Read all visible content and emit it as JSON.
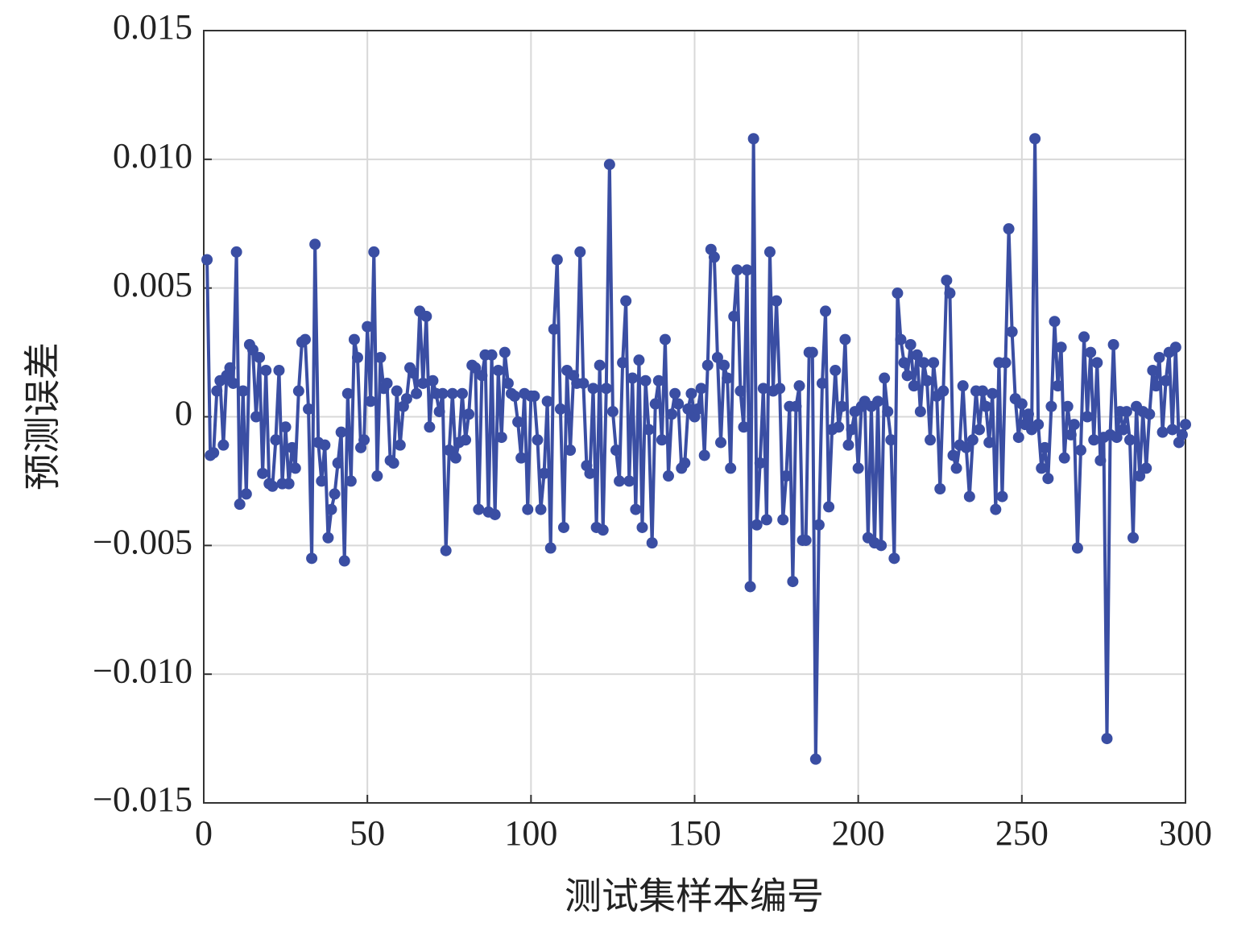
{
  "chart_data": {
    "type": "line",
    "xlabel": "测试集样本编号",
    "ylabel": "预测误差",
    "xlim": [
      0,
      300
    ],
    "xticks": [
      0,
      50,
      100,
      150,
      200,
      250,
      300
    ],
    "ylim": [
      -0.015,
      0.015
    ],
    "yticks": [
      {
        "value": -0.015,
        "label": "−0.015"
      },
      {
        "value": -0.01,
        "label": "−0.010"
      },
      {
        "value": -0.005,
        "label": "−0.005"
      },
      0,
      0.005,
      {
        "value": 0.01,
        "label": "0.010"
      },
      0.015
    ],
    "grid": true,
    "x": [
      1,
      2,
      3,
      4,
      5,
      6,
      7,
      8,
      9,
      10,
      11,
      12,
      13,
      14,
      15,
      16,
      17,
      18,
      19,
      20,
      21,
      22,
      23,
      24,
      25,
      26,
      27,
      28,
      29,
      30,
      31,
      32,
      33,
      34,
      35,
      36,
      37,
      38,
      39,
      40,
      41,
      42,
      43,
      44,
      45,
      46,
      47,
      48,
      49,
      50,
      51,
      52,
      53,
      54,
      55,
      56,
      57,
      58,
      59,
      60,
      61,
      62,
      63,
      64,
      65,
      66,
      67,
      68,
      69,
      70,
      71,
      72,
      73,
      74,
      75,
      76,
      77,
      78,
      79,
      80,
      81,
      82,
      83,
      84,
      85,
      86,
      87,
      88,
      89,
      90,
      91,
      92,
      93,
      94,
      95,
      96,
      97,
      98,
      99,
      100,
      101,
      102,
      103,
      104,
      105,
      106,
      107,
      108,
      109,
      110,
      111,
      112,
      113,
      114,
      115,
      116,
      117,
      118,
      119,
      120,
      121,
      122,
      123,
      124,
      125,
      126,
      127,
      128,
      129,
      130,
      131,
      132,
      133,
      134,
      135,
      136,
      137,
      138,
      139,
      140,
      141,
      142,
      143,
      144,
      145,
      146,
      147,
      148,
      149,
      150,
      151,
      152,
      153,
      154,
      155,
      156,
      157,
      158,
      159,
      160,
      161,
      162,
      163,
      164,
      165,
      166,
      167,
      168,
      169,
      170,
      171,
      172,
      173,
      174,
      175,
      176,
      177,
      178,
      179,
      180,
      181,
      182,
      183,
      184,
      185,
      186,
      187,
      188,
      189,
      190,
      191,
      192,
      193,
      194,
      195,
      196,
      197,
      198,
      199,
      200,
      201,
      202,
      203,
      204,
      205,
      206,
      207,
      208,
      209,
      210,
      211,
      212,
      213,
      214,
      215,
      216,
      217,
      218,
      219,
      220,
      221,
      222,
      223,
      224,
      225,
      226,
      227,
      228,
      229,
      230,
      231,
      232,
      233,
      234,
      235,
      236,
      237,
      238,
      239,
      240,
      241,
      242,
      243,
      244,
      245,
      246,
      247,
      248,
      249,
      250,
      251,
      252,
      253,
      254,
      255,
      256,
      257,
      258,
      259,
      260,
      261,
      262,
      263,
      264,
      265,
      266,
      267,
      268,
      269,
      270,
      271,
      272,
      273,
      274,
      275,
      276,
      277,
      278,
      279,
      280,
      281,
      282,
      283,
      284,
      285,
      286,
      287,
      288,
      289,
      290,
      291,
      292,
      293,
      294,
      295,
      296,
      297,
      298,
      299,
      300
    ],
    "series": [
      {
        "color": "#3a4ea3",
        "values": [
          0.0061,
          -0.0015,
          -0.0014,
          0.001,
          0.0014,
          -0.0011,
          0.0016,
          0.0019,
          0.0013,
          0.0064,
          -0.0034,
          0.001,
          -0.003,
          0.0028,
          0.0026,
          0.0,
          0.0023,
          -0.0022,
          0.0018,
          -0.0026,
          -0.0027,
          -0.0009,
          0.0018,
          -0.0026,
          -0.0004,
          -0.0026,
          -0.0012,
          -0.002,
          0.001,
          0.0029,
          0.003,
          0.0003,
          -0.0055,
          0.0067,
          -0.001,
          -0.0025,
          -0.0011,
          -0.0047,
          -0.0036,
          -0.003,
          -0.0018,
          -0.0006,
          -0.0056,
          0.0009,
          -0.0025,
          0.003,
          0.0023,
          -0.0012,
          -0.0009,
          0.0035,
          0.0006,
          0.0064,
          -0.0023,
          0.0023,
          0.0011,
          0.0013,
          -0.0017,
          -0.0018,
          0.001,
          -0.0011,
          0.0004,
          0.0007,
          0.0019,
          0.0017,
          0.0009,
          0.0041,
          0.0013,
          0.0039,
          -0.0004,
          0.0014,
          0.0009,
          0.0002,
          0.0009,
          -0.0052,
          -0.0013,
          0.0009,
          -0.0016,
          -0.001,
          0.0009,
          -0.0009,
          0.0001,
          0.002,
          0.0019,
          -0.0036,
          0.0016,
          0.0024,
          -0.0037,
          0.0024,
          -0.0038,
          0.0018,
          -0.0008,
          0.0025,
          0.0013,
          0.0009,
          0.0008,
          -0.0002,
          -0.0016,
          0.0009,
          -0.0036,
          0.0008,
          0.0008,
          -0.0009,
          -0.0036,
          -0.0022,
          0.0006,
          -0.0051,
          0.0034,
          0.0061,
          0.0003,
          -0.0043,
          0.0018,
          -0.0013,
          0.0016,
          0.0013,
          0.0064,
          0.0013,
          -0.0019,
          -0.0022,
          0.0011,
          -0.0043,
          0.002,
          -0.0044,
          0.0011,
          0.0098,
          0.0002,
          -0.0013,
          -0.0025,
          0.0021,
          0.0045,
          -0.0025,
          0.0015,
          -0.0036,
          0.0022,
          -0.0043,
          0.0014,
          -0.0005,
          -0.0049,
          0.0005,
          0.0014,
          -0.0009,
          0.003,
          -0.0023,
          0.0001,
          0.0009,
          0.0005,
          -0.002,
          -0.0018,
          0.0003,
          0.0009,
          0.0,
          0.0003,
          0.0011,
          -0.0015,
          0.002,
          0.0065,
          0.0062,
          0.0023,
          -0.001,
          0.002,
          0.0015,
          -0.002,
          0.0039,
          0.0057,
          0.001,
          -0.0004,
          0.0057,
          -0.0066,
          0.0108,
          -0.0042,
          -0.0018,
          0.0011,
          -0.004,
          0.0064,
          0.001,
          0.0045,
          0.0011,
          -0.004,
          -0.0023,
          0.0004,
          -0.0064,
          0.0004,
          0.0012,
          -0.0048,
          -0.0048,
          0.0025,
          0.0025,
          -0.0133,
          -0.0042,
          0.0013,
          0.0041,
          -0.0035,
          -0.0005,
          0.0018,
          -0.0004,
          0.0004,
          0.003,
          -0.0011,
          -0.0005,
          0.0002,
          -0.002,
          0.0004,
          0.0006,
          -0.0047,
          0.0004,
          -0.0049,
          0.0006,
          -0.005,
          0.0015,
          0.0002,
          -0.0009,
          -0.0055,
          0.0048,
          0.003,
          0.0021,
          0.0016,
          0.0028,
          0.0012,
          0.0024,
          0.0002,
          0.0021,
          0.0014,
          -0.0009,
          0.0021,
          0.0008,
          -0.0028,
          0.001,
          0.0053,
          0.0048,
          -0.0015,
          -0.002,
          -0.0011,
          0.0012,
          -0.0012,
          -0.0031,
          -0.0009,
          0.001,
          -0.0005,
          0.001,
          0.0004,
          -0.001,
          0.0009,
          -0.0036,
          0.0021,
          -0.0031,
          0.0021,
          0.0073,
          0.0033,
          0.0007,
          -0.0008,
          0.0005,
          -0.0003,
          0.0001,
          -0.0005,
          0.0108,
          -0.0003,
          -0.002,
          -0.0012,
          -0.0024,
          0.0004,
          0.0037,
          0.0012,
          0.0027,
          -0.0016,
          0.0004,
          -0.0007,
          -0.0003,
          -0.0051,
          -0.0013,
          0.0031,
          0.0,
          0.0025,
          -0.0009,
          0.0021,
          -0.0017,
          -0.0008,
          -0.0125,
          -0.0007,
          0.0028,
          -0.0008,
          0.0002,
          -0.0005,
          0.0002,
          -0.0009,
          -0.0047,
          0.0004,
          -0.0023,
          0.0002,
          -0.002,
          0.0001,
          0.0018,
          0.0012,
          0.0023,
          -0.0006,
          0.0014,
          0.0025,
          -0.0005,
          0.0027,
          -0.001,
          -0.0007,
          -0.0003
        ]
      }
    ]
  }
}
